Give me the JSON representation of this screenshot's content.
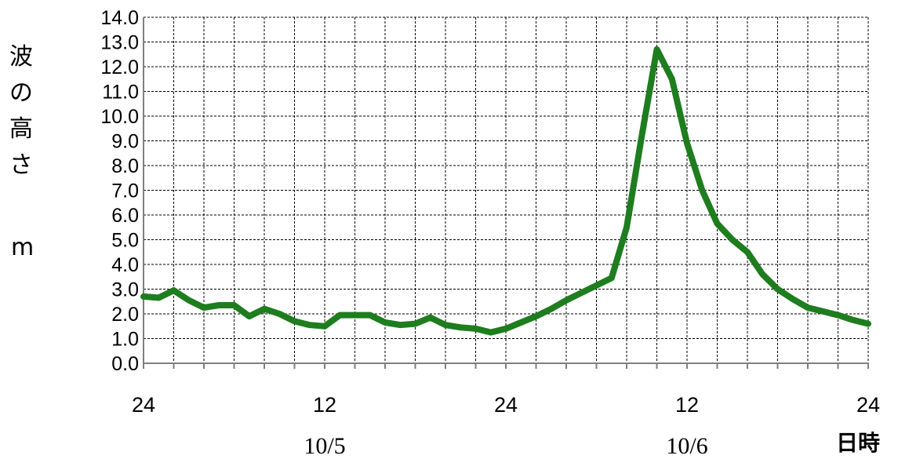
{
  "chart_data": {
    "type": "line",
    "ylabel": "波の高さ",
    "yunit": "m",
    "xunit": "日時",
    "ylim": [
      0,
      14
    ],
    "yticks": [
      "0.0",
      "1.0",
      "2.0",
      "3.0",
      "4.0",
      "5.0",
      "6.0",
      "7.0",
      "8.0",
      "9.0",
      "10.0",
      "11.0",
      "12.0",
      "13.0",
      "14.0"
    ],
    "xlim": [
      0,
      48
    ],
    "xticks": [
      {
        "x": 0,
        "label": "24"
      },
      {
        "x": 12,
        "label": "12"
      },
      {
        "x": 24,
        "label": "24"
      },
      {
        "x": 36,
        "label": "12"
      },
      {
        "x": 48,
        "label": "24"
      }
    ],
    "dates": [
      {
        "x": 12,
        "label": "10/5"
      },
      {
        "x": 36,
        "label": "10/6"
      }
    ],
    "grid": true,
    "series": [
      {
        "color": "#1e7d1e",
        "x": [
          0,
          1,
          2,
          3,
          4,
          5,
          6,
          7,
          8,
          9,
          10,
          11,
          12,
          13,
          14,
          15,
          16,
          17,
          18,
          19,
          20,
          21,
          22,
          23,
          24,
          25,
          26,
          27,
          28,
          29,
          30,
          31,
          32,
          33,
          34,
          35,
          36,
          37,
          38,
          39,
          40,
          41,
          42,
          43,
          44,
          45,
          46,
          47,
          48
        ],
        "y": [
          2.7,
          2.65,
          2.95,
          2.55,
          2.25,
          2.35,
          2.35,
          1.9,
          2.2,
          2.0,
          1.7,
          1.55,
          1.5,
          1.95,
          1.95,
          1.95,
          1.65,
          1.55,
          1.6,
          1.85,
          1.55,
          1.45,
          1.4,
          1.25,
          1.4,
          1.65,
          1.9,
          2.2,
          2.55,
          2.85,
          3.15,
          3.45,
          5.5,
          9.2,
          12.7,
          11.5,
          8.9,
          7.0,
          5.65,
          5.0,
          4.5,
          3.6,
          3.0,
          2.6,
          2.25,
          2.1,
          1.95,
          1.75,
          1.6
        ]
      }
    ]
  }
}
